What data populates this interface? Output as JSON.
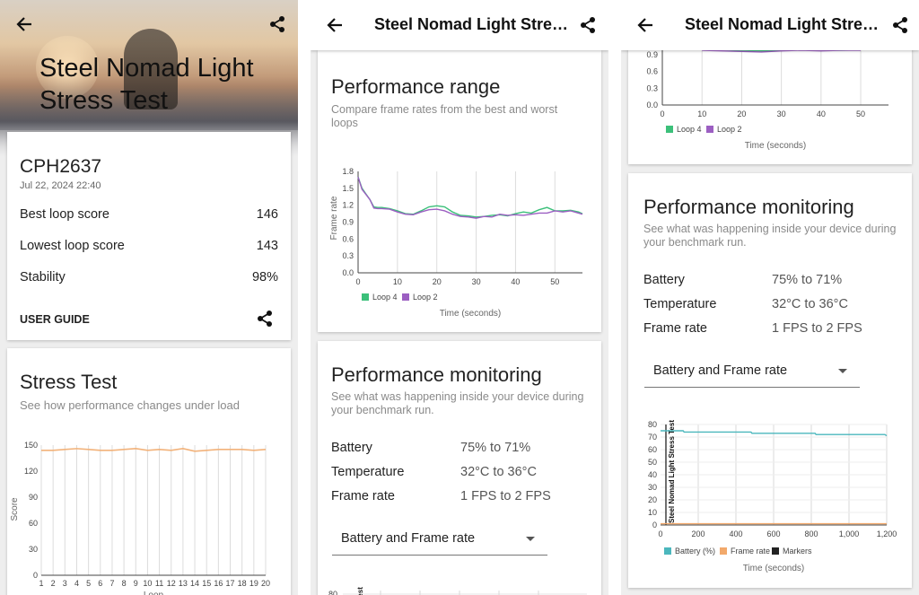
{
  "icons": {
    "back": "arrow-back-icon",
    "share": "share-icon",
    "dropdown": "caret-down-icon"
  },
  "colors": {
    "loop4": "#3cc07a",
    "loop2": "#9c5fc2",
    "battery": "#4bb7bd",
    "frame_rate": "#f2a96b",
    "markers": "#222222",
    "stress": "#f2b27a"
  },
  "panel1": {
    "hero_title": "Steel Nomad Light Stress Test",
    "device": {
      "name": "CPH2637",
      "date": "Jul 22, 2024 22:40"
    },
    "scores": [
      {
        "label": "Best loop score",
        "value": "146"
      },
      {
        "label": "Lowest loop score",
        "value": "143"
      },
      {
        "label": "Stability",
        "value": "98%"
      }
    ],
    "user_guide": "USER GUIDE",
    "stress": {
      "title": "Stress Test",
      "subtitle": "See how performance changes under load"
    }
  },
  "panel2": {
    "title": "Steel Nomad Light Stres…",
    "range": {
      "title": "Performance range",
      "subtitle": "Compare frame rates from the best and worst loops"
    },
    "monitoring": {
      "title": "Performance monitoring",
      "subtitle": "See what was happening inside your device during your benchmark run.",
      "rows": [
        {
          "label": "Battery",
          "value": "75% to 71%"
        },
        {
          "label": "Temperature",
          "value": "32°C to 36°C"
        },
        {
          "label": "Frame rate",
          "value": "1 FPS to 2 FPS"
        }
      ],
      "dropdown": "Battery and Frame rate"
    }
  },
  "panel3": {
    "title": "Steel Nomad Light Stres…",
    "monitoring": {
      "title": "Performance monitoring",
      "subtitle": "See what was happening inside your device during your benchmark run.",
      "rows": [
        {
          "label": "Battery",
          "value": "75% to 71%"
        },
        {
          "label": "Temperature",
          "value": "32°C to 36°C"
        },
        {
          "label": "Frame rate",
          "value": "1 FPS to 2 FPS"
        }
      ],
      "dropdown": "Battery and Frame rate"
    }
  },
  "chart_data": [
    {
      "id": "stress",
      "type": "line",
      "title": "",
      "xlabel": "Loop",
      "ylabel": "Score",
      "x": [
        1,
        2,
        3,
        4,
        5,
        6,
        7,
        8,
        9,
        10,
        11,
        12,
        13,
        14,
        15,
        16,
        17,
        18,
        19,
        20
      ],
      "series": [
        {
          "values": [
            144,
            144,
            145,
            146,
            145,
            144,
            144,
            145,
            146,
            144,
            145,
            144,
            146,
            143,
            144,
            145,
            145,
            145,
            144,
            145
          ]
        }
      ],
      "ylim": [
        0,
        150
      ],
      "yticks": [
        0,
        30,
        60,
        90,
        120,
        150
      ],
      "grid": "vertical"
    },
    {
      "id": "range",
      "type": "line",
      "title": "",
      "xlabel": "Time (seconds)",
      "ylabel": "Frame rate",
      "xlim": [
        0,
        57
      ],
      "xticks": [
        0,
        10,
        20,
        30,
        40,
        50
      ],
      "ylim": [
        0,
        1.8
      ],
      "yticks": [
        0.0,
        0.3,
        0.6,
        0.9,
        1.2,
        1.5,
        1.8
      ],
      "legend": "bottom",
      "series": [
        {
          "name": "Loop 4",
          "x": [
            0,
            1,
            2,
            3,
            4,
            5,
            6,
            8,
            10,
            12,
            14,
            16,
            18,
            20,
            22,
            24,
            26,
            28,
            30,
            32,
            34,
            36,
            38,
            40,
            42,
            44,
            46,
            48,
            50,
            52,
            54,
            56,
            57
          ],
          "values": [
            1.7,
            1.5,
            1.4,
            1.3,
            1.17,
            1.16,
            1.16,
            1.14,
            1.1,
            1.05,
            1.04,
            1.1,
            1.17,
            1.19,
            1.17,
            1.08,
            1.02,
            1.01,
            0.99,
            1.0,
            1.02,
            1.03,
            1.01,
            1.05,
            1.08,
            1.06,
            1.12,
            1.16,
            1.1,
            1.1,
            1.11,
            1.08,
            1.05
          ]
        },
        {
          "name": "Loop 2",
          "x": [
            0,
            1,
            2,
            3,
            4,
            5,
            6,
            8,
            10,
            12,
            14,
            16,
            18,
            20,
            22,
            24,
            26,
            28,
            30,
            32,
            34,
            36,
            38,
            40,
            42,
            44,
            46,
            48,
            50,
            52,
            54,
            56,
            57
          ],
          "values": [
            1.7,
            1.48,
            1.39,
            1.3,
            1.15,
            1.14,
            1.14,
            1.13,
            1.08,
            1.04,
            1.03,
            1.08,
            1.12,
            1.13,
            1.1,
            1.04,
            1.0,
            0.99,
            0.97,
            1.0,
            0.99,
            1.04,
            1.02,
            1.03,
            1.02,
            1.04,
            1.06,
            1.06,
            1.1,
            1.08,
            1.1,
            1.06,
            1.04
          ]
        }
      ]
    },
    {
      "id": "range_partial",
      "type": "line",
      "title": "",
      "xlabel": "Time (seconds)",
      "ylabel": "Frame rate",
      "xlim": [
        0,
        57
      ],
      "xticks": [
        0,
        10,
        20,
        30,
        40,
        50
      ],
      "ylim": [
        0,
        1.8
      ],
      "yticks": [
        0.0,
        0.3,
        0.6,
        0.9
      ],
      "legend": "bottom",
      "series": [
        {
          "name": "Loop 4",
          "x": [
            10,
            15,
            20,
            25,
            30,
            35,
            40,
            45,
            50
          ],
          "values": [
            1.0,
            0.99,
            0.98,
            0.97,
            0.98,
            0.99,
            0.99,
            0.98,
            0.99
          ]
        },
        {
          "name": "Loop 2",
          "x": [
            10,
            15,
            20,
            25,
            30,
            35,
            40,
            45,
            50
          ],
          "values": [
            0.98,
            0.97,
            0.96,
            0.95,
            0.97,
            0.98,
            0.97,
            0.98,
            0.98
          ]
        }
      ]
    },
    {
      "id": "monitor",
      "type": "line",
      "title": "",
      "xlabel": "Time (seconds)",
      "ylabel": "",
      "vertical_label": "Steel Nomad Light Stress Test",
      "xlim": [
        0,
        1200
      ],
      "xticks": [
        0,
        200,
        400,
        600,
        800,
        1000,
        1200
      ],
      "xtick_labels": [
        "0",
        "200",
        "400",
        "600",
        "800",
        "1,000",
        "1,200"
      ],
      "ylim": [
        0,
        80
      ],
      "yticks": [
        0,
        10,
        20,
        30,
        40,
        50,
        60,
        70,
        80
      ],
      "legend": "bottom",
      "series": [
        {
          "name": "Battery (%)",
          "x": [
            0,
            120,
            125,
            480,
            485,
            820,
            825,
            1190,
            1200
          ],
          "values": [
            75,
            75,
            74,
            74,
            73,
            73,
            72,
            72,
            71
          ]
        },
        {
          "name": "Frame rate",
          "x": [
            0,
            200,
            400,
            600,
            800,
            1000,
            1200
          ],
          "values": [
            1,
            1,
            1,
            1,
            1,
            1,
            1
          ]
        },
        {
          "name": "Markers",
          "x": [],
          "values": []
        }
      ]
    }
  ]
}
